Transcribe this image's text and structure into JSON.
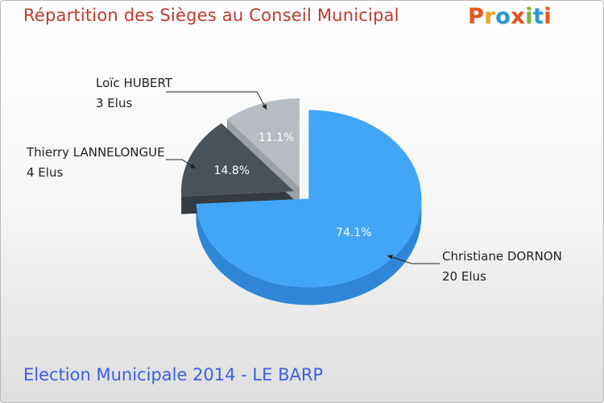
{
  "header": {
    "title": "Répartition des Sièges au Conseil Municipal",
    "logo_text": "Proxiti"
  },
  "footer": {
    "subtitle": "Election Municipale 2014 - LE BARP"
  },
  "colors": {
    "title": "#c0392b",
    "subtitle": "#3d5fe0",
    "logo_letters": [
      "#e8541e",
      "#f0a01b",
      "#2a9ad5",
      "#e8541e",
      "#7ab536",
      "#2a9ad5",
      "#e8541e"
    ]
  },
  "chart_data": {
    "type": "pie",
    "title": "Répartition des Sièges au Conseil Municipal",
    "series": [
      {
        "name": "Christiane DORNON",
        "seats_label": "20 Elus",
        "value": 20,
        "percent_label": "74.1%",
        "color": "#42a5f5",
        "side_color": "#2f86d6",
        "pct_color": "#ffffff"
      },
      {
        "name": "Thierry LANNELONGUE",
        "seats_label": "4 Elus",
        "value": 4,
        "percent_label": "14.8%",
        "color": "#4a5259",
        "side_color": "#353b40",
        "pct_color": "#ffffff"
      },
      {
        "name": "Loïc HUBERT",
        "seats_label": "3 Elus",
        "value": 3,
        "percent_label": "11.1%",
        "color": "#b6bcc2",
        "side_color": "#9aa0a6",
        "pct_color": "#ffffff"
      }
    ]
  }
}
